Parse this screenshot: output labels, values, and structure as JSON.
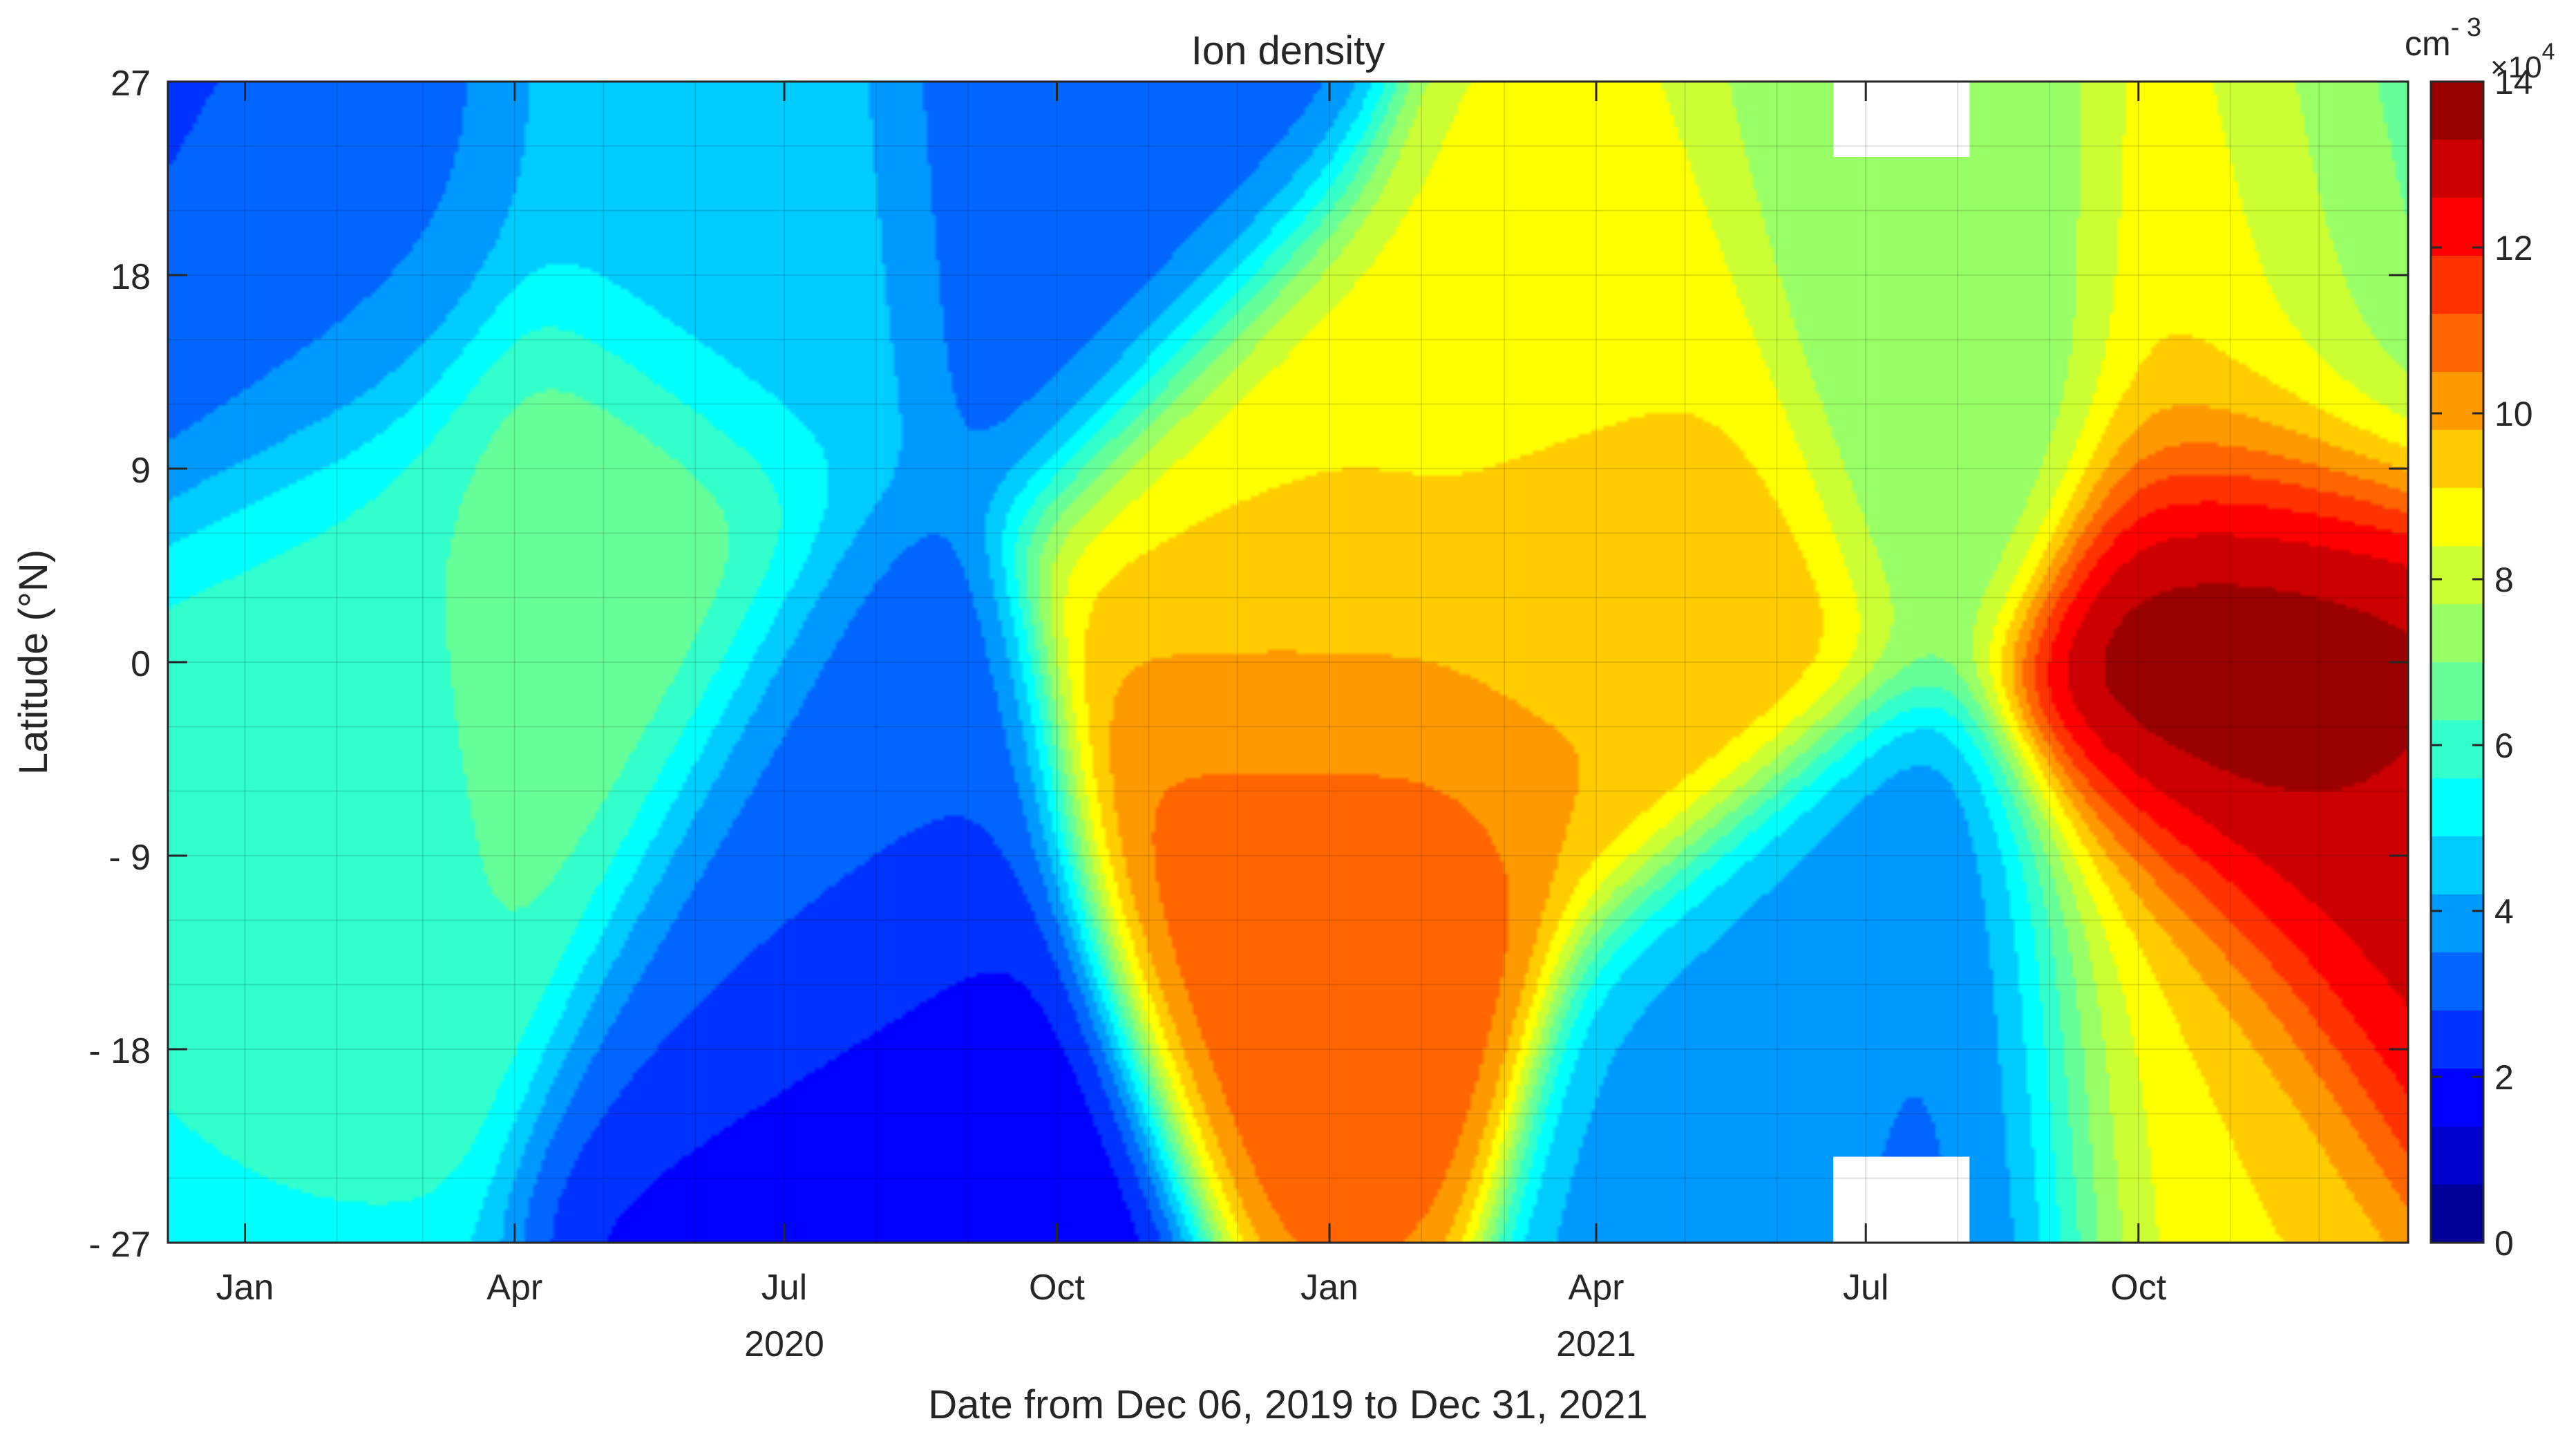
{
  "chart_data": {
    "type": "heatmap",
    "title": "Ion density",
    "xlabel": "Date from Dec 06, 2019 to Dec 31, 2021",
    "ylabel": "Latitude (°N)",
    "colorbar": {
      "unit_base": "cm",
      "unit_exp": "- 3",
      "scale_base": "×10",
      "scale_exp": "4",
      "range": [
        0,
        14
      ],
      "ticks": [
        0,
        2,
        4,
        6,
        8,
        10,
        12,
        14
      ],
      "tick_labels": [
        "0",
        "2",
        "4",
        "6",
        "8",
        "10",
        "12",
        "14"
      ],
      "colormap": "jet",
      "levels": 20
    },
    "x_axis": {
      "range": [
        "2019-12-06",
        "2021-12-31"
      ],
      "ticks": [
        {
          "date": "2020-01-01",
          "label": "Jan"
        },
        {
          "date": "2020-04-01",
          "label": "Apr"
        },
        {
          "date": "2020-07-01",
          "label": "Jul"
        },
        {
          "date": "2020-10-01",
          "label": "Oct"
        },
        {
          "date": "2021-01-01",
          "label": "Jan"
        },
        {
          "date": "2021-04-01",
          "label": "Apr"
        },
        {
          "date": "2021-07-01",
          "label": "Jul"
        },
        {
          "date": "2021-10-01",
          "label": "Oct"
        }
      ],
      "year_labels": [
        {
          "date": "2020-07-01",
          "label": "2020"
        },
        {
          "date": "2021-04-01",
          "label": "2021"
        }
      ]
    },
    "y_axis": {
      "range": [
        -27,
        27
      ],
      "ticks": [
        -27,
        -18,
        -9,
        0,
        9,
        18,
        27
      ],
      "tick_labels": [
        "- 27",
        "- 18",
        "- 9",
        "0",
        "9",
        "18",
        "27"
      ]
    },
    "grid": true,
    "legend": "colorbar-right",
    "features": [
      {
        "date": "2019-12-20",
        "lat": 25,
        "value": 2.5
      },
      {
        "date": "2020-01-20",
        "lat": 20,
        "value": 3.5
      },
      {
        "date": "2020-02-15",
        "lat": 0,
        "value": 6.0
      },
      {
        "date": "2020-04-25",
        "lat": 3,
        "value": 7.0
      },
      {
        "date": "2020-06-10",
        "lat": 22,
        "value": 4.5
      },
      {
        "date": "2020-08-10",
        "lat": -22,
        "value": 1.5
      },
      {
        "date": "2020-07-15",
        "lat": -10,
        "value": 3.0
      },
      {
        "date": "2020-10-15",
        "lat": 25,
        "value": 3.0
      },
      {
        "date": "2020-12-25",
        "lat": -7,
        "value": 11.0
      },
      {
        "date": "2020-12-25",
        "lat": 5,
        "value": 9.0
      },
      {
        "date": "2021-04-10",
        "lat": 5,
        "value": 10.0
      },
      {
        "date": "2021-04-01",
        "lat": 12,
        "value": 8.5
      },
      {
        "date": "2021-07-25",
        "lat": 18,
        "value": 7.0
      },
      {
        "date": "2021-07-25",
        "lat": -22,
        "value": 3.0
      },
      {
        "date": "2021-06-15",
        "lat": -20,
        "value": 4.0
      },
      {
        "date": "2021-11-20",
        "lat": 0,
        "value": 14.0
      },
      {
        "date": "2021-12-20",
        "lat": -8,
        "value": 13.0
      },
      {
        "date": "2021-11-15",
        "lat": 18,
        "value": 9.5
      },
      {
        "date": "2021-10-15",
        "lat": -20,
        "value": 9.0
      },
      {
        "date": "2021-12-20",
        "lat": 20,
        "value": 6.0
      }
    ],
    "background_value": 5.0,
    "missing_regions": [
      {
        "start": "2021-06-20",
        "end": "2021-08-05",
        "lat_min": 23.5,
        "lat_max": 27
      },
      {
        "start": "2021-06-20",
        "end": "2021-08-05",
        "lat_min": -27,
        "lat_max": -23
      }
    ]
  }
}
